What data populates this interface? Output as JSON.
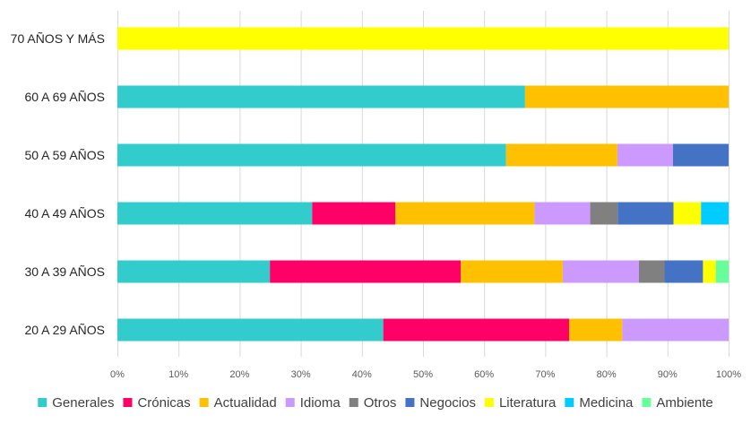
{
  "chart_data": {
    "type": "bar",
    "orientation": "horizontal",
    "stacked": "percent",
    "categories": [
      "70 AÑOS Y MÁS",
      "60 A 69 AÑOS",
      "50 A 59 AÑOS",
      "40 A 49 AÑOS",
      "30 A 39 AÑOS",
      "20 A 29 AÑOS"
    ],
    "x_ticks": [
      "0%",
      "10%",
      "20%",
      "30%",
      "40%",
      "50%",
      "60%",
      "70%",
      "80%",
      "90%",
      "100%"
    ],
    "xlim": [
      0,
      100
    ],
    "grid": true,
    "legend_position": "bottom",
    "series": [
      {
        "name": "Generales",
        "color": "#33CCCC",
        "values": [
          0,
          66.7,
          63.6,
          31.8,
          25.0,
          43.5
        ]
      },
      {
        "name": "Crónicas",
        "color": "#FF0066",
        "values": [
          0,
          0,
          0,
          13.6,
          31.3,
          30.4
        ]
      },
      {
        "name": "Actualidad",
        "color": "#FFC000",
        "values": [
          0,
          33.3,
          18.2,
          22.7,
          16.7,
          8.7
        ]
      },
      {
        "name": "Idioma",
        "color": "#CC99FF",
        "values": [
          0,
          0,
          9.1,
          9.1,
          12.5,
          17.4
        ]
      },
      {
        "name": "Otros",
        "color": "#808080",
        "values": [
          0,
          0,
          0,
          4.5,
          4.2,
          0
        ]
      },
      {
        "name": "Negocios",
        "color": "#4472C4",
        "values": [
          0,
          0,
          9.1,
          9.1,
          6.3,
          0
        ]
      },
      {
        "name": "Literatura",
        "color": "#FFFF00",
        "values": [
          100,
          0,
          0,
          4.5,
          2.1,
          0
        ]
      },
      {
        "name": "Medicina",
        "color": "#00CCFF",
        "values": [
          0,
          0,
          0,
          4.5,
          0,
          0
        ]
      },
      {
        "name": "Ambiente",
        "color": "#66FF99",
        "values": [
          0,
          0,
          0,
          0,
          2.1,
          0
        ]
      }
    ]
  }
}
